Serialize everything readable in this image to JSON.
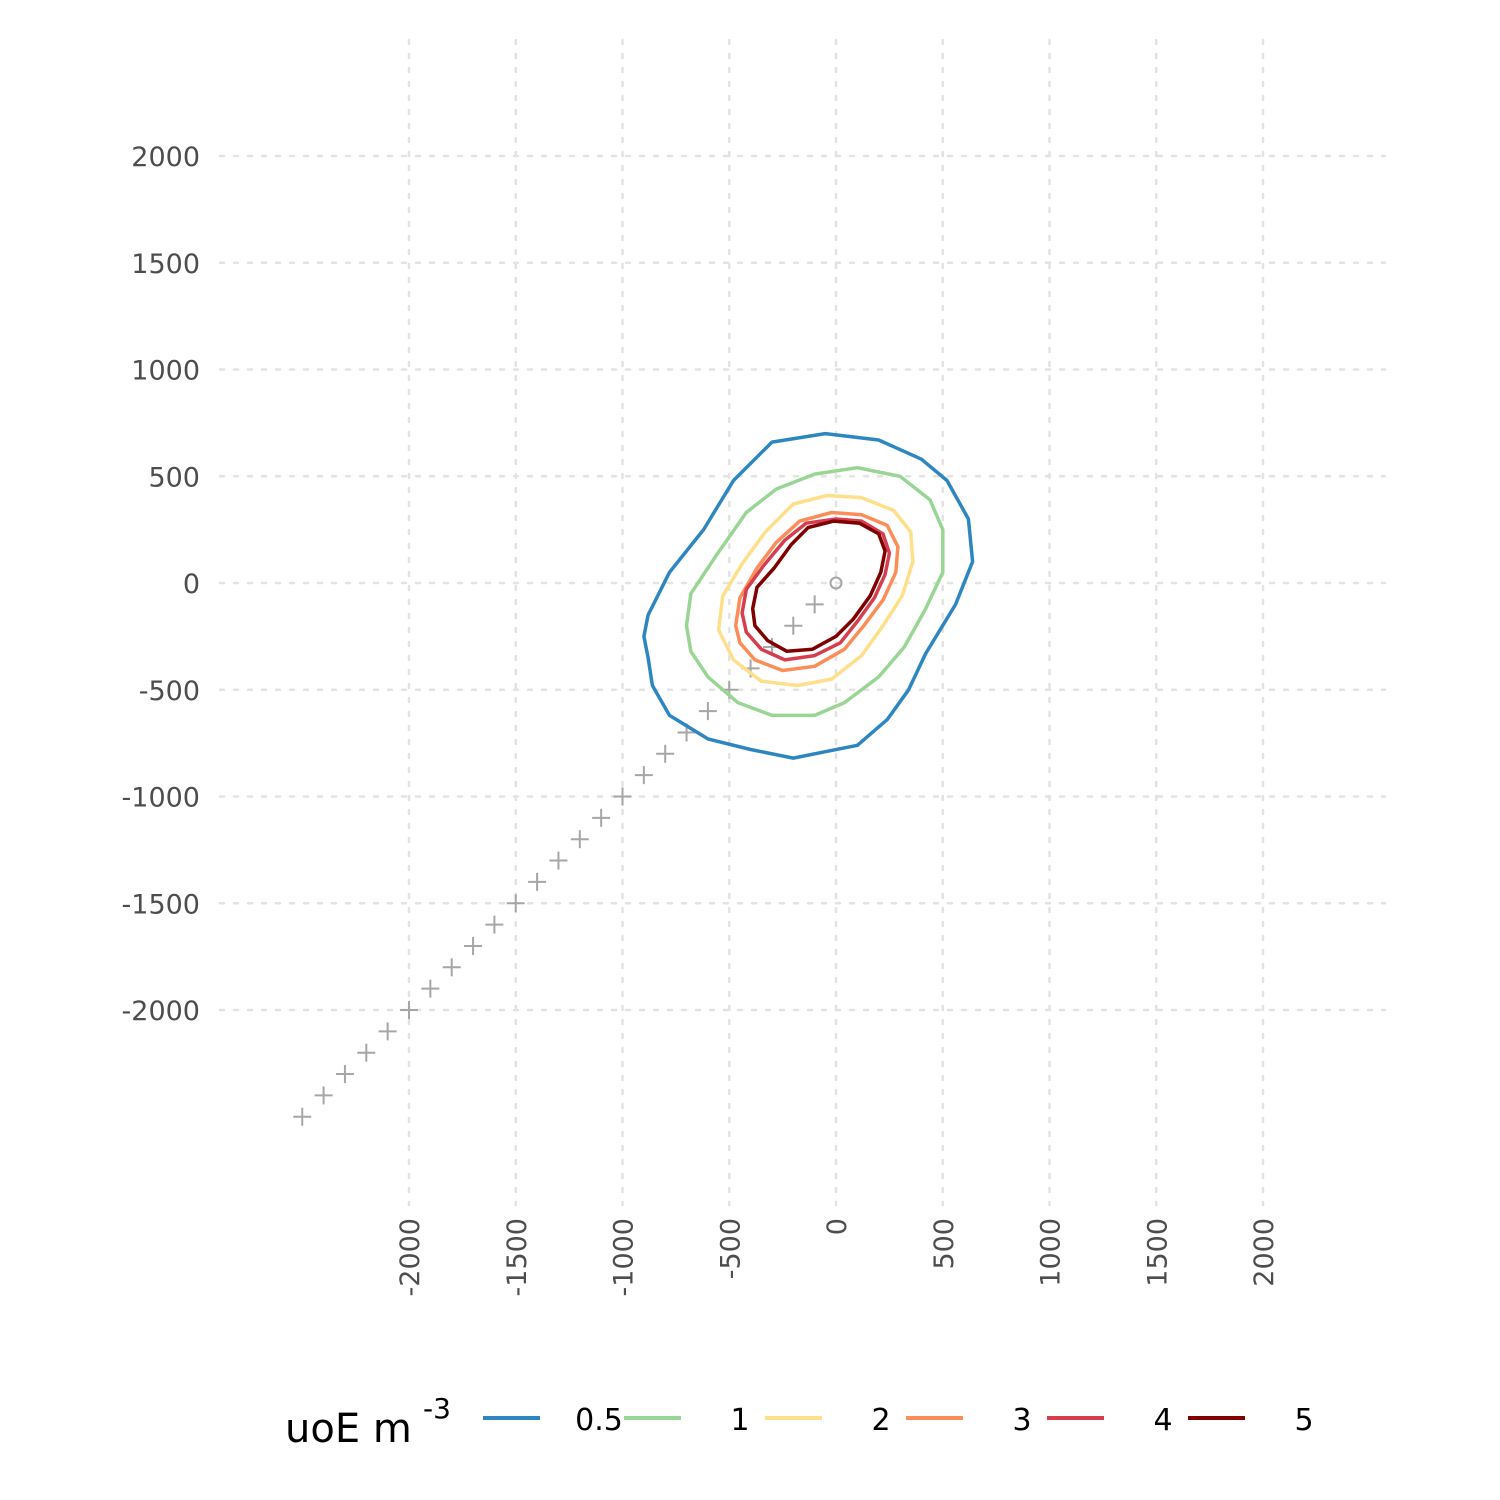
{
  "chart_data": {
    "type": "contour",
    "title": "",
    "xlabel": "",
    "ylabel": "",
    "xlim": [
      -2500,
      2550
    ],
    "ylim": [
      -2900,
      2500
    ],
    "grid": true,
    "grid_style": "dotted",
    "legend_position": "bottom",
    "x_ticks": [
      "-2000",
      "-1500",
      "-1000",
      "-500",
      "0",
      "500",
      "1000",
      "1500",
      "2000"
    ],
    "y_ticks": [
      "2000",
      "1500",
      "1000",
      "500",
      "0",
      "-500",
      "-1000",
      "-1500",
      "-2000"
    ],
    "legend": {
      "title": "uoE m",
      "title_superscript": "-3",
      "levels": [
        {
          "label": "0.5",
          "color": "#2E86C1"
        },
        {
          "label": "1",
          "color": "#99D594"
        },
        {
          "label": "2",
          "color": "#FEE08B"
        },
        {
          "label": "3",
          "color": "#FC8D59"
        },
        {
          "label": "4",
          "color": "#D53E4F"
        },
        {
          "label": "5",
          "color": "#7F0000"
        }
      ]
    },
    "contours": [
      {
        "level": "0.5",
        "points": [
          [
            -900,
            -250
          ],
          [
            -880,
            -150
          ],
          [
            -780,
            50
          ],
          [
            -620,
            250
          ],
          [
            -480,
            480
          ],
          [
            -300,
            660
          ],
          [
            -50,
            700
          ],
          [
            200,
            670
          ],
          [
            400,
            580
          ],
          [
            520,
            480
          ],
          [
            620,
            300
          ],
          [
            640,
            100
          ],
          [
            560,
            -100
          ],
          [
            420,
            -330
          ],
          [
            340,
            -500
          ],
          [
            240,
            -640
          ],
          [
            100,
            -760
          ],
          [
            -50,
            -790
          ],
          [
            -200,
            -820
          ],
          [
            -400,
            -780
          ],
          [
            -600,
            -730
          ],
          [
            -780,
            -620
          ],
          [
            -860,
            -480
          ],
          [
            -880,
            -350
          ],
          [
            -900,
            -250
          ]
        ]
      },
      {
        "level": "1",
        "points": [
          [
            -700,
            -200
          ],
          [
            -680,
            -50
          ],
          [
            -560,
            130
          ],
          [
            -420,
            330
          ],
          [
            -280,
            440
          ],
          [
            -100,
            510
          ],
          [
            100,
            540
          ],
          [
            300,
            500
          ],
          [
            440,
            390
          ],
          [
            500,
            250
          ],
          [
            500,
            50
          ],
          [
            420,
            -120
          ],
          [
            320,
            -300
          ],
          [
            200,
            -440
          ],
          [
            40,
            -560
          ],
          [
            -100,
            -620
          ],
          [
            -300,
            -620
          ],
          [
            -460,
            -560
          ],
          [
            -600,
            -440
          ],
          [
            -680,
            -320
          ],
          [
            -700,
            -200
          ]
        ]
      },
      {
        "level": "2",
        "points": [
          [
            -550,
            -220
          ],
          [
            -530,
            -60
          ],
          [
            -440,
            90
          ],
          [
            -330,
            240
          ],
          [
            -200,
            370
          ],
          [
            -40,
            410
          ],
          [
            120,
            400
          ],
          [
            270,
            340
          ],
          [
            350,
            240
          ],
          [
            360,
            100
          ],
          [
            310,
            -60
          ],
          [
            220,
            -200
          ],
          [
            120,
            -340
          ],
          [
            -20,
            -450
          ],
          [
            -180,
            -480
          ],
          [
            -350,
            -460
          ],
          [
            -480,
            -360
          ],
          [
            -550,
            -220
          ]
        ]
      },
      {
        "level": "3",
        "points": [
          [
            -470,
            -200
          ],
          [
            -450,
            -70
          ],
          [
            -370,
            70
          ],
          [
            -280,
            190
          ],
          [
            -170,
            290
          ],
          [
            -20,
            330
          ],
          [
            120,
            320
          ],
          [
            240,
            270
          ],
          [
            290,
            170
          ],
          [
            280,
            50
          ],
          [
            220,
            -80
          ],
          [
            130,
            -200
          ],
          [
            40,
            -310
          ],
          [
            -100,
            -390
          ],
          [
            -250,
            -410
          ],
          [
            -380,
            -360
          ],
          [
            -450,
            -280
          ],
          [
            -470,
            -200
          ]
        ]
      },
      {
        "level": "4",
        "points": [
          [
            -440,
            -140
          ],
          [
            -420,
            -30
          ],
          [
            -340,
            80
          ],
          [
            -240,
            200
          ],
          [
            -140,
            280
          ],
          [
            0,
            300
          ],
          [
            120,
            290
          ],
          [
            220,
            230
          ],
          [
            250,
            140
          ],
          [
            230,
            40
          ],
          [
            180,
            -70
          ],
          [
            100,
            -180
          ],
          [
            20,
            -280
          ],
          [
            -100,
            -340
          ],
          [
            -240,
            -360
          ],
          [
            -350,
            -310
          ],
          [
            -420,
            -230
          ],
          [
            -440,
            -140
          ]
        ]
      },
      {
        "level": "5",
        "points": [
          [
            -390,
            -120
          ],
          [
            -370,
            -20
          ],
          [
            -290,
            70
          ],
          [
            -210,
            180
          ],
          [
            -130,
            260
          ],
          [
            -10,
            290
          ],
          [
            110,
            280
          ],
          [
            200,
            230
          ],
          [
            230,
            150
          ],
          [
            210,
            50
          ],
          [
            160,
            -60
          ],
          [
            80,
            -170
          ],
          [
            0,
            -250
          ],
          [
            -110,
            -310
          ],
          [
            -230,
            -320
          ],
          [
            -320,
            -270
          ],
          [
            -380,
            -200
          ],
          [
            -390,
            -120
          ]
        ]
      }
    ],
    "source_marker": {
      "symbol": "circle",
      "x": 0,
      "y": 0
    },
    "path_markers": {
      "symbol": "plus",
      "start": [
        -2500,
        -2500
      ],
      "end": [
        -100,
        -100
      ],
      "step": 100
    }
  }
}
